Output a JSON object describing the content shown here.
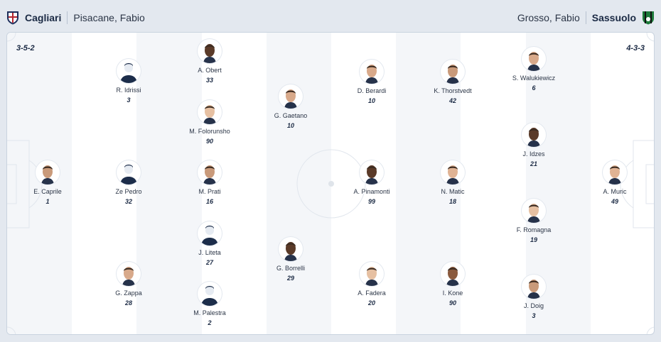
{
  "home": {
    "name": "Cagliari",
    "coach": "Pisacane, Fabio",
    "formation": "3-5-2",
    "crest_colors": [
      "#b5262e",
      "#1c2d5a"
    ],
    "players": [
      {
        "name": "E. Caprile",
        "number": "1",
        "avatar": "photo"
      },
      {
        "name": "R. Idrissi",
        "number": "3",
        "avatar": "placeholder"
      },
      {
        "name": "Ze Pedro",
        "number": "32",
        "avatar": "placeholder"
      },
      {
        "name": "G. Zappa",
        "number": "28",
        "avatar": "photo"
      },
      {
        "name": "A. Obert",
        "number": "33",
        "avatar": "photo"
      },
      {
        "name": "M. Folorunsho",
        "number": "90",
        "avatar": "photo"
      },
      {
        "name": "M. Prati",
        "number": "16",
        "avatar": "photo"
      },
      {
        "name": "J. Liteta",
        "number": "27",
        "avatar": "placeholder"
      },
      {
        "name": "M. Palestra",
        "number": "2",
        "avatar": "placeholder"
      },
      {
        "name": "G. Gaetano",
        "number": "10",
        "avatar": "photo"
      },
      {
        "name": "G. Borrelli",
        "number": "29",
        "avatar": "photo"
      }
    ]
  },
  "away": {
    "name": "Sassuolo",
    "coach": "Grosso, Fabio",
    "formation": "4-3-3",
    "crest_colors": [
      "#1d7a3a",
      "#111111"
    ],
    "players": [
      {
        "name": "D. Berardi",
        "number": "10",
        "avatar": "photo"
      },
      {
        "name": "A. Pinamonti",
        "number": "99",
        "avatar": "photo"
      },
      {
        "name": "A. Fadera",
        "number": "20",
        "avatar": "photo"
      },
      {
        "name": "K. Thorstvedt",
        "number": "42",
        "avatar": "photo"
      },
      {
        "name": "N. Matic",
        "number": "18",
        "avatar": "photo"
      },
      {
        "name": "I. Kone",
        "number": "90",
        "avatar": "photo"
      },
      {
        "name": "S. Walukiewicz",
        "number": "6",
        "avatar": "photo"
      },
      {
        "name": "J. Idzes",
        "number": "21",
        "avatar": "photo"
      },
      {
        "name": "F. Romagna",
        "number": "19",
        "avatar": "photo"
      },
      {
        "name": "J. Doig",
        "number": "3",
        "avatar": "photo"
      },
      {
        "name": "A. Muric",
        "number": "49",
        "avatar": "photo"
      }
    ]
  }
}
